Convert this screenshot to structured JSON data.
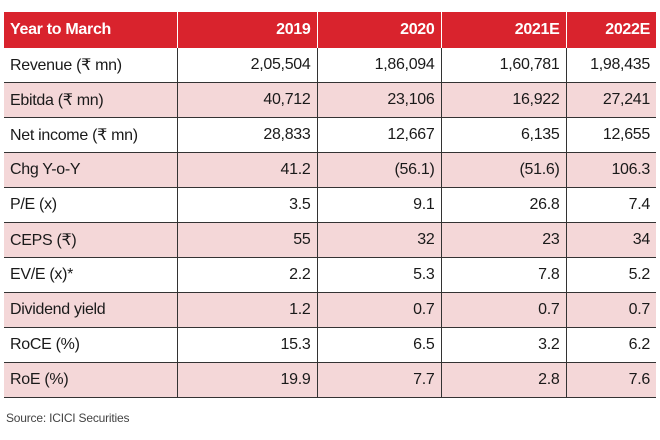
{
  "table": {
    "headers": [
      "Year to March",
      "2019",
      "2020",
      "2021E",
      "2022E"
    ],
    "rows": [
      [
        "Revenue (₹ mn)",
        "2,05,504",
        "1,86,094",
        "1,60,781",
        "1,98,435"
      ],
      [
        "Ebitda (₹ mn)",
        "40,712",
        "23,106",
        "16,922",
        "27,241"
      ],
      [
        "Net income (₹ mn)",
        "28,833",
        "12,667",
        "6,135",
        "12,655"
      ],
      [
        "Chg Y-o-Y",
        "41.2",
        "(56.1)",
        "(51.6)",
        "106.3"
      ],
      [
        "P/E (x)",
        "3.5",
        "9.1",
        "26.8",
        "7.4"
      ],
      [
        "CEPS (₹)",
        "55",
        "32",
        "23",
        "34"
      ],
      [
        "EV/E (x)*",
        "2.2",
        "5.3",
        "7.8",
        "5.2"
      ],
      [
        "Dividend yield",
        "1.2",
        "0.7",
        "0.7",
        "0.7"
      ],
      [
        "RoCE (%)",
        "15.3",
        "6.5",
        "3.2",
        "6.2"
      ],
      [
        "RoE (%)",
        "19.9",
        "7.7",
        "2.8",
        "7.6"
      ]
    ]
  },
  "source": "Source: ICICI Securities",
  "colors": {
    "header": "#d9232d",
    "shade": "#f4d7d8"
  }
}
